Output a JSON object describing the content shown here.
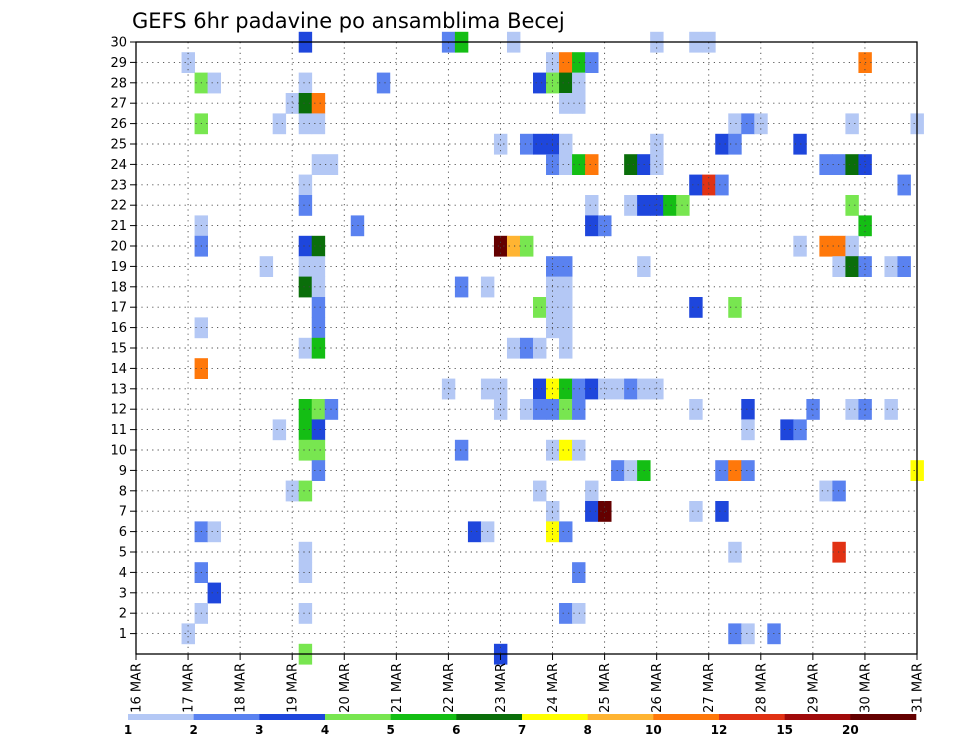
{
  "chart_data": {
    "type": "heatmap",
    "title": "GEFS 6hr padavine po ansamblima Becej",
    "xlabel": "",
    "ylabel": "",
    "x_tick_labels": [
      "16 MAR",
      "17 MAR",
      "18 MAR",
      "19 MAR",
      "20 MAR",
      "21 MAR",
      "22 MAR",
      "23 MAR",
      "24 MAR",
      "25 MAR",
      "26 MAR",
      "27 MAR",
      "28 MAR",
      "29 MAR",
      "30 MAR",
      "31 MAR"
    ],
    "y_tick_labels": [
      "1",
      "2",
      "3",
      "4",
      "5",
      "6",
      "7",
      "8",
      "9",
      "10",
      "11",
      "12",
      "13",
      "14",
      "15",
      "16",
      "17",
      "18",
      "19",
      "20",
      "21",
      "22",
      "23",
      "24",
      "25",
      "26",
      "27",
      "28",
      "29",
      "30"
    ],
    "xlim_steps": [
      0,
      60
    ],
    "ylim_members": [
      0,
      30
    ],
    "grid": true,
    "legend": {
      "placement": "bottom",
      "labels": [
        "1",
        "2",
        "3",
        "4",
        "5",
        "6",
        "7",
        "8",
        "10",
        "12",
        "15",
        "20"
      ],
      "colors": [
        "#b4c8f5",
        "#5a82f0",
        "#1e46dc",
        "#78e650",
        "#14be14",
        "#0a6e0a",
        "#ffff00",
        "#ffb432",
        "#ff780a",
        "#e13214",
        "#a00a0a",
        "#640000"
      ]
    },
    "cells": [
      [
        30,
        13,
        3
      ],
      [
        30,
        24,
        2
      ],
      [
        30,
        25,
        5
      ],
      [
        30,
        29,
        1
      ],
      [
        30,
        40,
        1
      ],
      [
        30,
        43,
        1
      ],
      [
        30,
        44,
        1
      ],
      [
        29,
        4,
        1
      ],
      [
        29,
        32,
        1
      ],
      [
        29,
        33,
        9
      ],
      [
        29,
        34,
        5
      ],
      [
        29,
        35,
        2
      ],
      [
        29,
        56,
        9
      ],
      [
        28,
        5,
        4
      ],
      [
        28,
        6,
        1
      ],
      [
        28,
        13,
        1
      ],
      [
        28,
        19,
        2
      ],
      [
        28,
        31,
        3
      ],
      [
        28,
        32,
        4
      ],
      [
        28,
        33,
        6
      ],
      [
        28,
        34,
        1
      ],
      [
        27,
        12,
        1
      ],
      [
        27,
        13,
        6
      ],
      [
        27,
        14,
        9
      ],
      [
        27,
        33,
        1
      ],
      [
        27,
        34,
        1
      ],
      [
        26,
        5,
        4
      ],
      [
        26,
        11,
        1
      ],
      [
        26,
        13,
        1
      ],
      [
        26,
        14,
        1
      ],
      [
        26,
        46,
        1
      ],
      [
        26,
        47,
        2
      ],
      [
        26,
        48,
        1
      ],
      [
        26,
        55,
        1
      ],
      [
        26,
        60,
        1
      ],
      [
        25,
        28,
        1
      ],
      [
        25,
        30,
        2
      ],
      [
        25,
        31,
        3
      ],
      [
        25,
        32,
        3
      ],
      [
        25,
        33,
        1
      ],
      [
        25,
        40,
        1
      ],
      [
        25,
        45,
        3
      ],
      [
        25,
        46,
        2
      ],
      [
        25,
        51,
        3
      ],
      [
        24,
        14,
        1
      ],
      [
        24,
        15,
        1
      ],
      [
        24,
        32,
        2
      ],
      [
        24,
        33,
        1
      ],
      [
        24,
        34,
        5
      ],
      [
        24,
        35,
        9
      ],
      [
        24,
        38,
        6
      ],
      [
        24,
        39,
        3
      ],
      [
        24,
        40,
        1
      ],
      [
        24,
        53,
        2
      ],
      [
        24,
        54,
        2
      ],
      [
        24,
        55,
        6
      ],
      [
        24,
        56,
        3
      ],
      [
        23,
        13,
        1
      ],
      [
        23,
        43,
        3
      ],
      [
        23,
        44,
        10
      ],
      [
        23,
        45,
        2
      ],
      [
        23,
        59,
        2
      ],
      [
        22,
        13,
        2
      ],
      [
        22,
        35,
        1
      ],
      [
        22,
        38,
        1
      ],
      [
        22,
        39,
        3
      ],
      [
        22,
        40,
        3
      ],
      [
        22,
        41,
        5
      ],
      [
        22,
        42,
        4
      ],
      [
        22,
        55,
        4
      ],
      [
        21,
        5,
        1
      ],
      [
        21,
        17,
        2
      ],
      [
        21,
        35,
        3
      ],
      [
        21,
        36,
        2
      ],
      [
        21,
        56,
        5
      ],
      [
        20,
        5,
        2
      ],
      [
        20,
        13,
        3
      ],
      [
        20,
        14,
        6
      ],
      [
        20,
        28,
        12
      ],
      [
        20,
        29,
        8
      ],
      [
        20,
        30,
        4
      ],
      [
        20,
        51,
        1
      ],
      [
        20,
        53,
        9
      ],
      [
        20,
        54,
        9
      ],
      [
        20,
        55,
        1
      ],
      [
        19,
        10,
        1
      ],
      [
        19,
        13,
        1
      ],
      [
        19,
        14,
        1
      ],
      [
        19,
        32,
        2
      ],
      [
        19,
        33,
        2
      ],
      [
        19,
        39,
        1
      ],
      [
        19,
        54,
        1
      ],
      [
        19,
        55,
        6
      ],
      [
        19,
        56,
        2
      ],
      [
        19,
        58,
        1
      ],
      [
        19,
        59,
        2
      ],
      [
        18,
        13,
        6
      ],
      [
        18,
        14,
        1
      ],
      [
        18,
        25,
        2
      ],
      [
        18,
        27,
        1
      ],
      [
        18,
        32,
        1
      ],
      [
        18,
        33,
        1
      ],
      [
        17,
        14,
        2
      ],
      [
        17,
        31,
        4
      ],
      [
        17,
        32,
        1
      ],
      [
        17,
        33,
        1
      ],
      [
        17,
        43,
        3
      ],
      [
        17,
        46,
        4
      ],
      [
        16,
        5,
        1
      ],
      [
        16,
        14,
        2
      ],
      [
        16,
        32,
        1
      ],
      [
        16,
        33,
        1
      ],
      [
        15,
        13,
        1
      ],
      [
        15,
        14,
        5
      ],
      [
        15,
        29,
        1
      ],
      [
        15,
        30,
        2
      ],
      [
        15,
        31,
        1
      ],
      [
        15,
        33,
        1
      ],
      [
        14,
        5,
        9
      ],
      [
        13,
        24,
        1
      ],
      [
        13,
        27,
        1
      ],
      [
        13,
        28,
        1
      ],
      [
        13,
        31,
        3
      ],
      [
        13,
        32,
        7
      ],
      [
        13,
        33,
        5
      ],
      [
        13,
        34,
        2
      ],
      [
        13,
        35,
        3
      ],
      [
        13,
        36,
        1
      ],
      [
        13,
        37,
        1
      ],
      [
        13,
        38,
        2
      ],
      [
        13,
        39,
        1
      ],
      [
        13,
        40,
        1
      ],
      [
        12,
        13,
        5
      ],
      [
        12,
        14,
        4
      ],
      [
        12,
        15,
        2
      ],
      [
        12,
        28,
        1
      ],
      [
        12,
        30,
        1
      ],
      [
        12,
        31,
        2
      ],
      [
        12,
        32,
        2
      ],
      [
        12,
        33,
        4
      ],
      [
        12,
        34,
        2
      ],
      [
        12,
        43,
        1
      ],
      [
        12,
        47,
        3
      ],
      [
        12,
        52,
        2
      ],
      [
        12,
        55,
        1
      ],
      [
        12,
        56,
        2
      ],
      [
        12,
        58,
        1
      ],
      [
        11,
        11,
        1
      ],
      [
        11,
        13,
        5
      ],
      [
        11,
        14,
        3
      ],
      [
        11,
        47,
        1
      ],
      [
        11,
        50,
        3
      ],
      [
        11,
        51,
        2
      ],
      [
        10,
        13,
        4
      ],
      [
        10,
        14,
        4
      ],
      [
        10,
        25,
        2
      ],
      [
        10,
        32,
        1
      ],
      [
        10,
        33,
        7
      ],
      [
        10,
        34,
        1
      ],
      [
        9,
        14,
        2
      ],
      [
        9,
        37,
        2
      ],
      [
        9,
        38,
        1
      ],
      [
        9,
        39,
        5
      ],
      [
        9,
        45,
        2
      ],
      [
        9,
        46,
        9
      ],
      [
        9,
        47,
        2
      ],
      [
        9,
        60,
        7
      ],
      [
        8,
        12,
        1
      ],
      [
        8,
        13,
        4
      ],
      [
        8,
        31,
        1
      ],
      [
        8,
        35,
        1
      ],
      [
        8,
        53,
        1
      ],
      [
        8,
        54,
        2
      ],
      [
        7,
        32,
        1
      ],
      [
        7,
        35,
        3
      ],
      [
        7,
        36,
        12
      ],
      [
        7,
        43,
        1
      ],
      [
        7,
        45,
        3
      ],
      [
        6,
        5,
        2
      ],
      [
        6,
        6,
        1
      ],
      [
        6,
        26,
        3
      ],
      [
        6,
        27,
        1
      ],
      [
        6,
        32,
        7
      ],
      [
        6,
        33,
        2
      ],
      [
        5,
        13,
        1
      ],
      [
        5,
        46,
        1
      ],
      [
        5,
        54,
        10
      ],
      [
        4,
        5,
        2
      ],
      [
        4,
        13,
        1
      ],
      [
        4,
        34,
        2
      ],
      [
        3,
        6,
        3
      ],
      [
        2,
        5,
        1
      ],
      [
        2,
        13,
        1
      ],
      [
        2,
        33,
        2
      ],
      [
        2,
        34,
        1
      ],
      [
        1,
        4,
        1
      ],
      [
        1,
        46,
        2
      ],
      [
        1,
        47,
        1
      ],
      [
        1,
        49,
        2
      ],
      [
        0,
        13,
        4
      ],
      [
        0,
        28,
        3
      ]
    ]
  }
}
